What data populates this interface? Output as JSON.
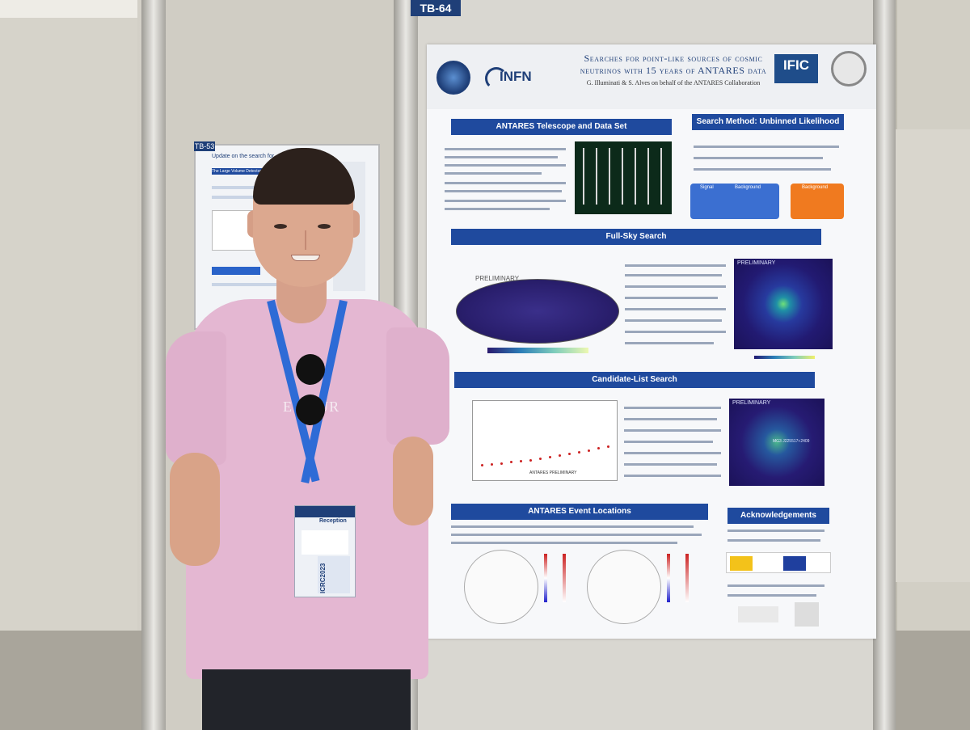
{
  "scene": {
    "board_tag_main": "TB-64",
    "board_tag_far": "TB-53",
    "far_poster_title": "Update on the search for",
    "far_poster_heading": "The Large Volume Detector"
  },
  "poster": {
    "title_line1": "Searches for point-like sources of cosmic",
    "title_line2": "neutrinos with 15 years of ANTARES data",
    "authors": "G. Illuminati & S. Alves on behalf of the ANTARES Collaboration",
    "logo_infn": "INFN",
    "logo_ific": "IFIC",
    "sections": {
      "telescope": "ANTARES Telescope and Data Set",
      "method": "Search Method: Unbinned Likelihood",
      "fullsky": "Full-Sky Search",
      "candidates": "Candidate-List Search",
      "events": "ANTARES Event Locations",
      "ack": "Acknowledgements"
    },
    "likelihood_labels": {
      "signal": "Signal",
      "background": "Background"
    },
    "preliminary": "PRELIMINARY",
    "candidate_label": "MG3 J225517+2409",
    "scatter_note": "ANTARES PRELIMINARY"
  },
  "person": {
    "shirt_print": "ET        OUR",
    "badge_event": "ICRC2023",
    "badge_header": "Reception"
  },
  "colors": {
    "poster_blue": "#1f4a9e",
    "shirt_pink": "#e4b7d2",
    "lanyard_blue": "#2e6bd6"
  }
}
